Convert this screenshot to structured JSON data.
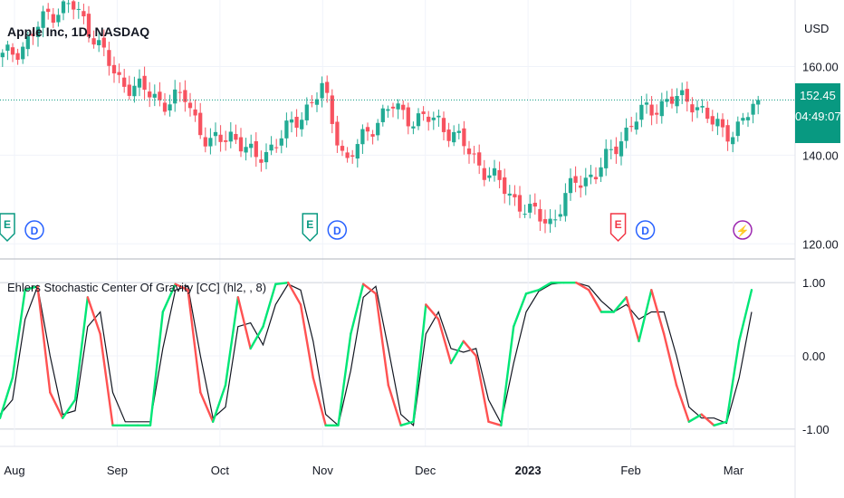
{
  "header": {
    "symbol_title": "Apple Inc, 1D, NASDAQ",
    "currency": "USD"
  },
  "price_tag": {
    "price": "152.45",
    "countdown": "04:49:07"
  },
  "indicator": {
    "title": "Ehlers Stochastic Center Of Gravity [CC] (hl2, , 8)"
  },
  "event_markers": [
    {
      "label": "E",
      "x_month": "Aug",
      "color": "#089981"
    },
    {
      "label": "D",
      "x_month": "Aug",
      "color": "#2962ff"
    },
    {
      "label": "E",
      "x_month": "Nov",
      "color": "#089981"
    },
    {
      "label": "D",
      "x_month": "Nov",
      "color": "#2962ff"
    },
    {
      "label": "E",
      "x_month": "Feb",
      "color": "#f23645"
    },
    {
      "label": "D",
      "x_month": "Feb",
      "color": "#2962ff"
    },
    {
      "label": "⚡",
      "x_month": "Mar",
      "color": "#9c27b0"
    }
  ],
  "colors": {
    "up": "#22ab94",
    "down": "#f7525f",
    "osc_up": "#00e676",
    "osc_down": "#ff5252",
    "signal": "#131722",
    "grid": "#f0f3fa",
    "axis_text": "#131722",
    "last_price_line": "#089981"
  },
  "chart_data": [
    {
      "type": "candlestick",
      "title": "Apple Inc, 1D, NASDAQ",
      "ylabel": "USD",
      "ylim": [
        117,
        175
      ],
      "y_ticks": [
        "120.00",
        "140.00",
        "160.00"
      ],
      "x_ticks": [
        "Aug",
        "Sep",
        "Oct",
        "Nov",
        "Dec",
        "2023",
        "Feb",
        "Mar"
      ],
      "close_path": [
        [
          "Jul 29",
          162
        ],
        [
          "Aug 5",
          165
        ],
        [
          "Aug 12",
          172
        ],
        [
          "Aug 17",
          174
        ],
        [
          "Aug 24",
          167
        ],
        [
          "Aug 31",
          157
        ],
        [
          "Sep 7",
          155
        ],
        [
          "Sep 14",
          152
        ],
        [
          "Sep 21",
          153
        ],
        [
          "Sep 28",
          142
        ],
        [
          "Oct 5",
          145
        ],
        [
          "Oct 12",
          139
        ],
        [
          "Oct 19",
          143
        ],
        [
          "Oct 26",
          149
        ],
        [
          "Oct 28",
          155
        ],
        [
          "Nov 3",
          138
        ],
        [
          "Nov 10",
          146
        ],
        [
          "Nov 17",
          151
        ],
        [
          "Nov 24",
          148
        ],
        [
          "Dec 1",
          148
        ],
        [
          "Dec 8",
          143
        ],
        [
          "Dec 15",
          137
        ],
        [
          "Dec 22",
          132
        ],
        [
          "Dec 29",
          127
        ],
        [
          "Jan 5",
          125
        ],
        [
          "Jan 12",
          134
        ],
        [
          "Jan 19",
          136
        ],
        [
          "Jan 26",
          144
        ],
        [
          "Feb 2",
          150
        ],
        [
          "Feb 9",
          152
        ],
        [
          "Feb 16",
          153
        ],
        [
          "Feb 23",
          147
        ],
        [
          "Mar 2",
          145
        ],
        [
          "Mar 7",
          152.45
        ]
      ],
      "last_price": 152.45
    },
    {
      "type": "line",
      "title": "Ehlers Stochastic Center Of Gravity [CC] (hl2, , 8)",
      "ylim": [
        -1.2,
        1.2
      ],
      "y_ticks": [
        "1.00",
        "0.00",
        "-1.00"
      ],
      "series": [
        {
          "values": [
            -0.85,
            -0.3,
            0.9,
            0.95,
            -0.5,
            -0.85,
            -0.6,
            0.8,
            0.3,
            -0.95,
            -0.95,
            -0.95,
            -0.95,
            0.6,
            0.98,
            0.9,
            -0.5,
            -0.9,
            -0.4,
            0.8,
            0.1,
            0.4,
            0.98,
            1.0,
            0.7,
            -0.3,
            -0.95,
            -0.95,
            0.3,
            0.98,
            0.85,
            -0.4,
            -0.95,
            -0.9,
            0.7,
            0.5,
            -0.1,
            0.2,
            0.0,
            -0.9,
            -0.95,
            0.4,
            0.85,
            0.9,
            1.0,
            1.0,
            1.0,
            0.9,
            0.6,
            0.6,
            0.8,
            0.2,
            0.9,
            0.3,
            -0.4,
            -0.9,
            -0.8,
            -0.95,
            -0.9,
            0.2,
            0.9
          ]
        },
        {
          "values": [
            -0.8,
            -0.6,
            0.5,
            0.95,
            0.0,
            -0.8,
            -0.75,
            0.4,
            0.6,
            -0.5,
            -0.9,
            -0.9,
            -0.9,
            0.1,
            0.9,
            0.95,
            0.0,
            -0.85,
            -0.7,
            0.4,
            0.45,
            0.15,
            0.7,
            0.98,
            0.9,
            0.2,
            -0.8,
            -0.95,
            -0.2,
            0.8,
            0.95,
            0.1,
            -0.8,
            -0.95,
            0.3,
            0.6,
            0.1,
            0.05,
            0.1,
            -0.6,
            -0.92,
            -0.1,
            0.6,
            0.88,
            0.98,
            1.0,
            1.0,
            0.95,
            0.75,
            0.6,
            0.7,
            0.5,
            0.6,
            0.6,
            0.0,
            -0.7,
            -0.85,
            -0.85,
            -0.92,
            -0.3,
            0.6
          ]
        }
      ]
    }
  ]
}
